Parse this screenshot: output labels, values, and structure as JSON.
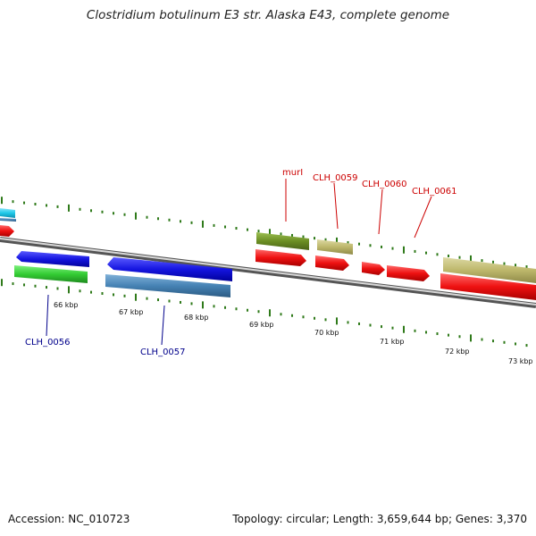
{
  "title": "Clostridium botulinum E3 str. Alaska E43, complete genome",
  "footer": {
    "accession": "Accession: NC_010723",
    "summary": "Topology: circular; Length: 3,659,644 bp; Genes: 3,370"
  },
  "ticks": [
    "66 kbp",
    "67 kbp",
    "68 kbp",
    "69 kbp",
    "70 kbp",
    "71 kbp",
    "72 kbp",
    "73 kbp"
  ],
  "gene_labels": {
    "murI": "murI",
    "clh_0059": "CLH_0059",
    "clh_0060": "CLH_0060",
    "clh_0061": "CLH_0061",
    "clh_0056": "CLH_0056",
    "clh_0057": "CLH_0057"
  },
  "colors": {
    "backbone": "#888888",
    "tick": "#2f7a1a",
    "gene_red": "#ee1111",
    "gene_blue": "#1515e0",
    "gene_steel": "#4682b4",
    "gene_green": "#33cc33",
    "gene_olive": "#6b8e23",
    "gene_khaki": "#bdb76b",
    "gene_cyan": "#1ec8e8",
    "label_red": "#cc0000",
    "label_blue": "#00008b"
  }
}
